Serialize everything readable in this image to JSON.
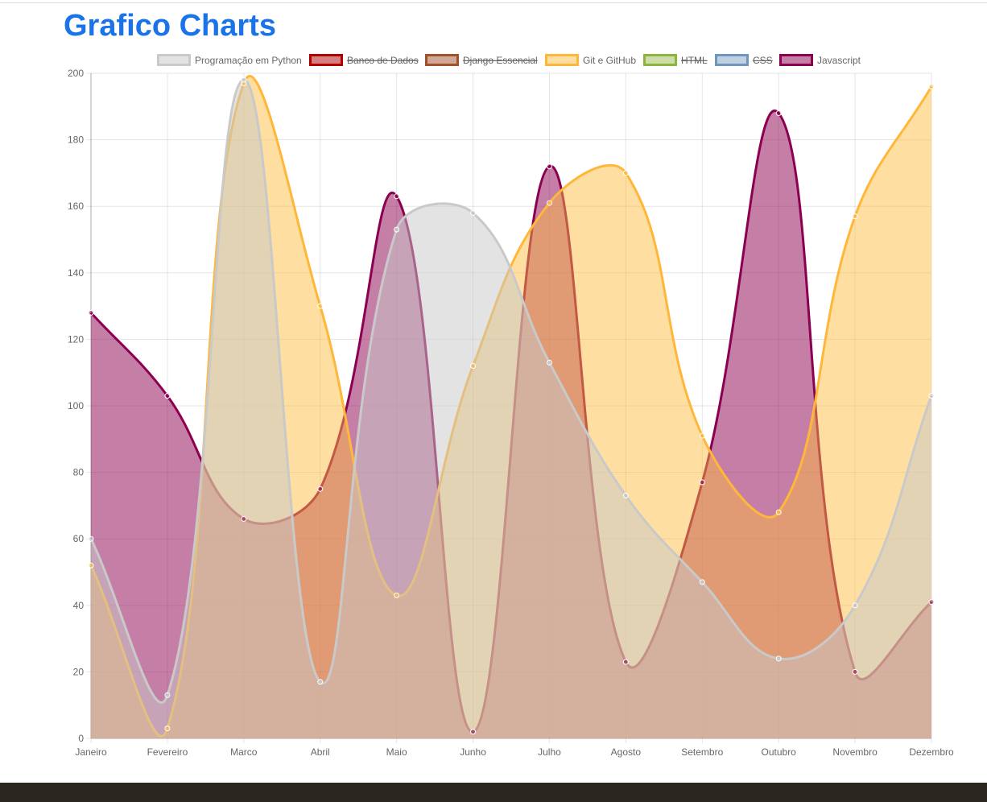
{
  "chart_data": {
    "type": "line",
    "title": "Grafico Charts",
    "categories": [
      "Janeiro",
      "Fevereiro",
      "Marco",
      "Abril",
      "Maio",
      "Junho",
      "Julho",
      "Agosto",
      "Setembro",
      "Outubro",
      "Novembro",
      "Dezembro"
    ],
    "ylim": [
      0,
      200
    ],
    "yticks": [
      0,
      20,
      40,
      60,
      80,
      100,
      120,
      140,
      160,
      180,
      200
    ],
    "grid": true,
    "legend": "top",
    "fill": true,
    "series": [
      {
        "name": "Programação em Python",
        "color": "#c9c9c9",
        "fill": "rgba(200,200,200,0.5)",
        "values": [
          60,
          13,
          198,
          17,
          153,
          158,
          113,
          73,
          47,
          24,
          40,
          103
        ]
      },
      {
        "name": "Banco de Dados",
        "color": "#b00000",
        "fill": "rgba(176,0,0,0.5)",
        "hidden": true
      },
      {
        "name": "Django Essencial",
        "color": "#a0522d",
        "fill": "rgba(160,82,45,0.5)",
        "hidden": true
      },
      {
        "name": "Git e GitHub",
        "color": "#ffb73a",
        "fill": "rgba(255,186,60,0.48)",
        "values": [
          52,
          3,
          197,
          130,
          43,
          112,
          161,
          170,
          91,
          68,
          157,
          196
        ]
      },
      {
        "name": "HTML",
        "color": "#8db43c",
        "fill": "rgba(141,180,60,0.45)",
        "hidden": true
      },
      {
        "name": "CSS",
        "color": "#6f97bd",
        "fill": "rgba(111,151,189,0.45)",
        "hidden": true
      },
      {
        "name": "Javascript",
        "color": "#8b0050",
        "fill": "rgba(139,0,80,0.5)",
        "values": [
          128,
          103,
          66,
          75,
          163,
          2,
          172,
          23,
          77,
          188,
          20,
          41
        ]
      }
    ]
  }
}
